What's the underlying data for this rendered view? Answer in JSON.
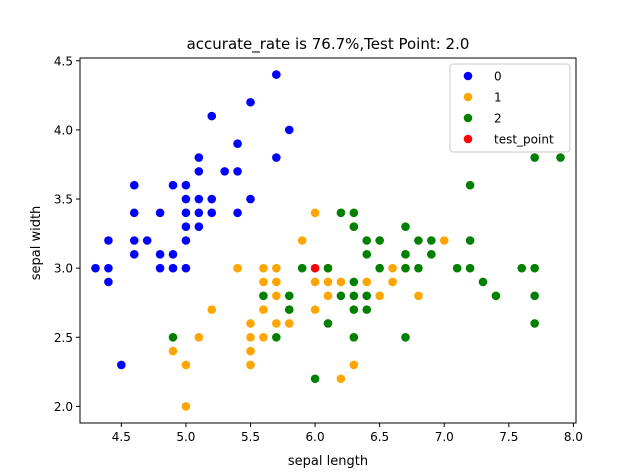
{
  "chart_data": {
    "type": "scatter",
    "title": "accurate_rate is 76.7%,Test Point: 2.0",
    "xlabel": "sepal length",
    "ylabel": "sepal width",
    "xlim": [
      4.18,
      8.02
    ],
    "ylim": [
      1.88,
      4.52
    ],
    "xticks": [
      "4.5",
      "5.0",
      "5.5",
      "6.0",
      "6.5",
      "7.0",
      "7.5",
      "8.0"
    ],
    "yticks": [
      "2.0",
      "2.5",
      "3.0",
      "3.5",
      "4.0",
      "4.5"
    ],
    "grid": false,
    "legend_placement": "top-right",
    "series": [
      {
        "name": "0",
        "color": "#0000ff",
        "points": [
          [
            4.3,
            3.0
          ],
          [
            4.4,
            2.9
          ],
          [
            4.4,
            3.0
          ],
          [
            4.4,
            3.2
          ],
          [
            4.5,
            2.3
          ],
          [
            4.6,
            3.1
          ],
          [
            4.6,
            3.2
          ],
          [
            4.6,
            3.4
          ],
          [
            4.6,
            3.6
          ],
          [
            4.7,
            3.2
          ],
          [
            4.8,
            3.0
          ],
          [
            4.8,
            3.1
          ],
          [
            4.8,
            3.4
          ],
          [
            4.9,
            3.0
          ],
          [
            4.9,
            3.1
          ],
          [
            4.9,
            3.6
          ],
          [
            5.0,
            3.0
          ],
          [
            5.0,
            3.2
          ],
          [
            5.0,
            3.3
          ],
          [
            5.0,
            3.4
          ],
          [
            5.0,
            3.5
          ],
          [
            5.0,
            3.6
          ],
          [
            5.1,
            3.3
          ],
          [
            5.1,
            3.4
          ],
          [
            5.1,
            3.5
          ],
          [
            5.1,
            3.7
          ],
          [
            5.1,
            3.8
          ],
          [
            5.2,
            3.4
          ],
          [
            5.2,
            3.5
          ],
          [
            5.2,
            4.1
          ],
          [
            5.3,
            3.7
          ],
          [
            5.4,
            3.4
          ],
          [
            5.4,
            3.7
          ],
          [
            5.4,
            3.9
          ],
          [
            5.5,
            3.5
          ],
          [
            5.5,
            4.2
          ],
          [
            5.7,
            3.8
          ],
          [
            5.7,
            4.4
          ],
          [
            5.8,
            4.0
          ]
        ]
      },
      {
        "name": "1",
        "color": "#ffa500",
        "points": [
          [
            4.9,
            2.4
          ],
          [
            5.0,
            2.0
          ],
          [
            5.0,
            2.3
          ],
          [
            5.1,
            2.5
          ],
          [
            5.2,
            2.7
          ],
          [
            5.4,
            3.0
          ],
          [
            5.5,
            2.3
          ],
          [
            5.5,
            2.4
          ],
          [
            5.5,
            2.5
          ],
          [
            5.5,
            2.6
          ],
          [
            5.6,
            2.5
          ],
          [
            5.6,
            2.7
          ],
          [
            5.6,
            2.9
          ],
          [
            5.6,
            3.0
          ],
          [
            5.7,
            2.6
          ],
          [
            5.7,
            2.8
          ],
          [
            5.7,
            2.9
          ],
          [
            5.7,
            3.0
          ],
          [
            5.8,
            2.6
          ],
          [
            5.8,
            2.7
          ],
          [
            5.9,
            3.2
          ],
          [
            6.0,
            2.7
          ],
          [
            6.0,
            2.9
          ],
          [
            6.0,
            3.4
          ],
          [
            6.1,
            2.8
          ],
          [
            6.1,
            2.9
          ],
          [
            6.1,
            3.0
          ],
          [
            6.2,
            2.2
          ],
          [
            6.2,
            2.9
          ],
          [
            6.3,
            2.3
          ],
          [
            6.3,
            2.5
          ],
          [
            6.3,
            3.3
          ],
          [
            6.4,
            2.9
          ],
          [
            6.5,
            2.8
          ],
          [
            6.6,
            2.9
          ],
          [
            6.6,
            3.0
          ],
          [
            6.7,
            3.0
          ],
          [
            6.7,
            3.1
          ],
          [
            6.8,
            2.8
          ],
          [
            6.9,
            3.1
          ],
          [
            7.0,
            3.2
          ]
        ]
      },
      {
        "name": "2",
        "color": "#008000",
        "points": [
          [
            4.9,
            2.5
          ],
          [
            5.6,
            2.8
          ],
          [
            5.7,
            2.5
          ],
          [
            5.8,
            2.7
          ],
          [
            5.8,
            2.8
          ],
          [
            5.9,
            3.0
          ],
          [
            6.0,
            2.2
          ],
          [
            6.1,
            2.6
          ],
          [
            6.1,
            3.0
          ],
          [
            6.2,
            2.8
          ],
          [
            6.2,
            3.4
          ],
          [
            6.3,
            2.5
          ],
          [
            6.3,
            2.7
          ],
          [
            6.3,
            2.8
          ],
          [
            6.3,
            2.9
          ],
          [
            6.3,
            3.3
          ],
          [
            6.3,
            3.4
          ],
          [
            6.4,
            2.7
          ],
          [
            6.4,
            2.8
          ],
          [
            6.4,
            3.1
          ],
          [
            6.4,
            3.2
          ],
          [
            6.5,
            3.0
          ],
          [
            6.5,
            3.2
          ],
          [
            6.7,
            2.5
          ],
          [
            6.7,
            3.0
          ],
          [
            6.7,
            3.1
          ],
          [
            6.7,
            3.3
          ],
          [
            6.8,
            3.0
          ],
          [
            6.8,
            3.2
          ],
          [
            6.9,
            3.1
          ],
          [
            6.9,
            3.2
          ],
          [
            7.1,
            3.0
          ],
          [
            7.2,
            3.0
          ],
          [
            7.2,
            3.2
          ],
          [
            7.2,
            3.6
          ],
          [
            7.3,
            2.9
          ],
          [
            7.4,
            2.8
          ],
          [
            7.6,
            3.0
          ],
          [
            7.7,
            2.6
          ],
          [
            7.7,
            2.8
          ],
          [
            7.7,
            3.0
          ],
          [
            7.7,
            3.8
          ],
          [
            7.9,
            3.8
          ]
        ]
      },
      {
        "name": "test_point",
        "color": "#ff0000",
        "points": [
          [
            6.0,
            3.0
          ]
        ]
      }
    ]
  }
}
